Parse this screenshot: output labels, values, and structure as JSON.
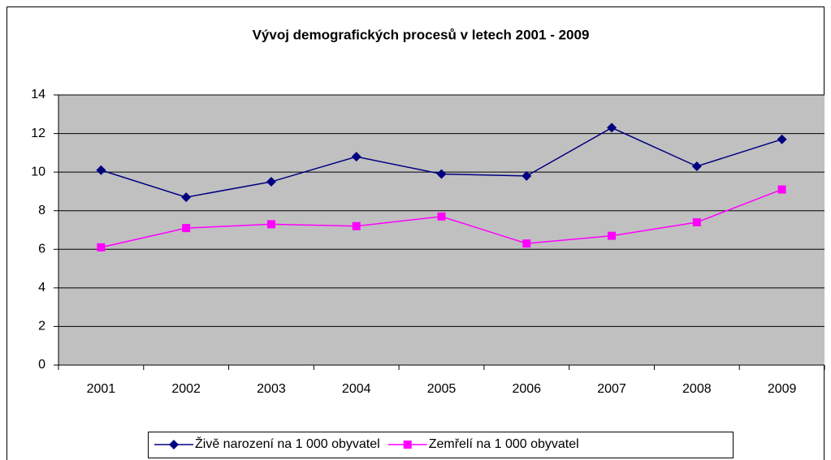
{
  "chart_data": {
    "type": "line",
    "title": "Vývoj demografických procesů v letech 2001 - 2009",
    "categories": [
      "2001",
      "2002",
      "2003",
      "2004",
      "2005",
      "2006",
      "2007",
      "2008",
      "2009"
    ],
    "series": [
      {
        "name": "Živě narození na 1 000 obyvatel",
        "color": "#000080",
        "marker": "diamond",
        "values": [
          10.1,
          8.7,
          9.5,
          10.8,
          9.9,
          9.8,
          12.3,
          10.3,
          11.7
        ]
      },
      {
        "name": "Zemřelí na 1 000 obyvatel",
        "color": "#ff00ff",
        "marker": "square",
        "values": [
          6.1,
          7.1,
          7.3,
          7.2,
          7.7,
          6.3,
          6.7,
          7.4,
          9.1
        ]
      }
    ],
    "ylim": [
      0,
      14
    ],
    "yticks": [
      0,
      2,
      4,
      6,
      8,
      10,
      12,
      14
    ],
    "grid": true,
    "legend": "bottom"
  }
}
